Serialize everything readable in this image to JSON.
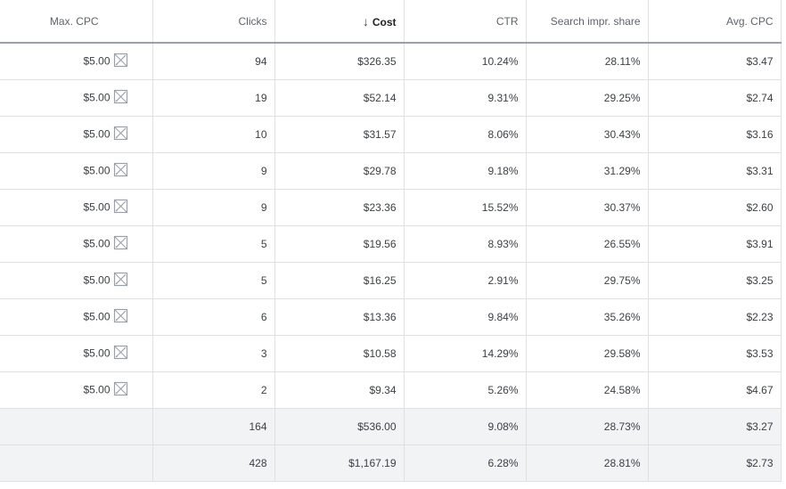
{
  "table": {
    "headers": {
      "max_cpc": "Max. CPC",
      "clicks": "Clicks",
      "cost": "Cost",
      "ctr": "CTR",
      "search_impr_share": "Search impr. share",
      "avg_cpc": "Avg. CPC"
    },
    "sorted_column": "cost",
    "sort_direction": "descending",
    "rows": [
      {
        "max_cpc": "$5.00",
        "clicks": "94",
        "cost": "$326.35",
        "ctr": "10.24%",
        "search_impr_share": "28.11%",
        "avg_cpc": "$3.47"
      },
      {
        "max_cpc": "$5.00",
        "clicks": "19",
        "cost": "$52.14",
        "ctr": "9.31%",
        "search_impr_share": "29.25%",
        "avg_cpc": "$2.74"
      },
      {
        "max_cpc": "$5.00",
        "clicks": "10",
        "cost": "$31.57",
        "ctr": "8.06%",
        "search_impr_share": "30.43%",
        "avg_cpc": "$3.16"
      },
      {
        "max_cpc": "$5.00",
        "clicks": "9",
        "cost": "$29.78",
        "ctr": "9.18%",
        "search_impr_share": "31.29%",
        "avg_cpc": "$3.31"
      },
      {
        "max_cpc": "$5.00",
        "clicks": "9",
        "cost": "$23.36",
        "ctr": "15.52%",
        "search_impr_share": "30.37%",
        "avg_cpc": "$2.60"
      },
      {
        "max_cpc": "$5.00",
        "clicks": "5",
        "cost": "$19.56",
        "ctr": "8.93%",
        "search_impr_share": "26.55%",
        "avg_cpc": "$3.91"
      },
      {
        "max_cpc": "$5.00",
        "clicks": "5",
        "cost": "$16.25",
        "ctr": "2.91%",
        "search_impr_share": "29.75%",
        "avg_cpc": "$3.25"
      },
      {
        "max_cpc": "$5.00",
        "clicks": "6",
        "cost": "$13.36",
        "ctr": "9.84%",
        "search_impr_share": "35.26%",
        "avg_cpc": "$2.23"
      },
      {
        "max_cpc": "$5.00",
        "clicks": "3",
        "cost": "$10.58",
        "ctr": "14.29%",
        "search_impr_share": "29.58%",
        "avg_cpc": "$3.53"
      },
      {
        "max_cpc": "$5.00",
        "clicks": "2",
        "cost": "$9.34",
        "ctr": "5.26%",
        "search_impr_share": "24.58%",
        "avg_cpc": "$4.67"
      }
    ],
    "totals": [
      {
        "clicks": "164",
        "cost": "$536.00",
        "ctr": "9.08%",
        "search_impr_share": "28.73%",
        "avg_cpc": "$3.27"
      },
      {
        "clicks": "428",
        "cost": "$1,167.19",
        "ctr": "6.28%",
        "search_impr_share": "28.81%",
        "avg_cpc": "$2.73"
      }
    ]
  },
  "icons": {
    "sort": "arrow-down-icon",
    "cpc_edit": "pencil-edit-icon"
  },
  "colors": {
    "header_text": "#5f6368",
    "body_text": "#3c4043",
    "border": "#e0e0e0",
    "header_border": "#9aa0a6",
    "total_row_bg": "#f1f3f4",
    "icon": "#9aa0a6"
  }
}
